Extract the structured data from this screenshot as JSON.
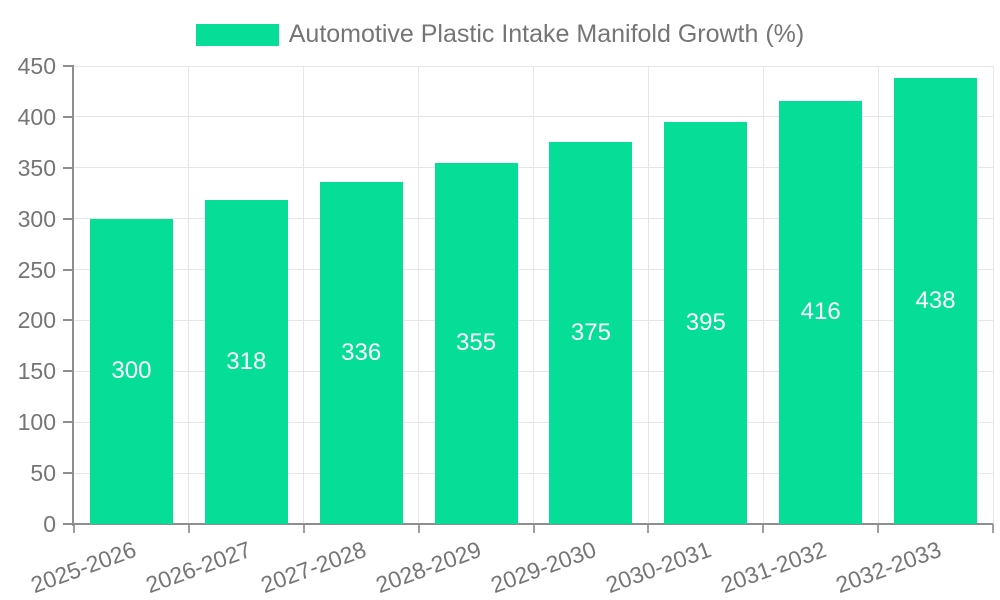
{
  "chart_data": {
    "type": "bar",
    "legend": "Automotive Plastic Intake Manifold Growth (%)",
    "categories": [
      "2025-2026",
      "2026-2027",
      "2027-2028",
      "2028-2029",
      "2029-2030",
      "2030-2031",
      "2031-2032",
      "2032-2033"
    ],
    "values": [
      300,
      318,
      336,
      355,
      375,
      395,
      416,
      438
    ],
    "yticks": [
      0,
      50,
      100,
      150,
      200,
      250,
      300,
      350,
      400,
      450
    ],
    "ylim": [
      0,
      450
    ],
    "grid": true,
    "legend_position": "top-center",
    "x_label_rotation_deg": -20,
    "bar_color": "#06DD96",
    "value_label_color": "#ffffff",
    "axis_text_color": "#757575",
    "grid_color": "#e6e6e6",
    "axis_line_color": "#8e8e8e",
    "tick_mark_color": "#a0a0a0",
    "background_color": "#ffffff"
  }
}
